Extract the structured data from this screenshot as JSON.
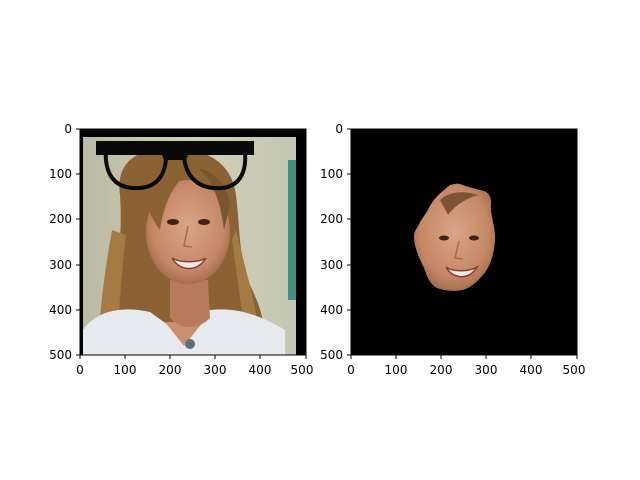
{
  "panels": [
    {
      "id": "left",
      "description_icon": "photo-with-glasses-overlay",
      "x_ticks": [
        "0",
        "100",
        "200",
        "300",
        "400",
        "500"
      ],
      "y_ticks": [
        "0",
        "100",
        "200",
        "300",
        "400",
        "500"
      ],
      "x_range": [
        0,
        500
      ],
      "y_range": [
        0,
        500
      ]
    },
    {
      "id": "right",
      "description_icon": "segmented-face-on-black",
      "x_ticks": [
        "0",
        "100",
        "200",
        "300",
        "400",
        "500"
      ],
      "y_ticks": [
        "0",
        "100",
        "200",
        "300",
        "400",
        "500"
      ],
      "x_range": [
        0,
        500
      ],
      "y_range": [
        0,
        500
      ]
    }
  ],
  "colors": {
    "background": "#ffffff",
    "axis": "#000000",
    "mask_background": "#000000",
    "glasses": "#0a0a0a",
    "skin": "#c98f6e",
    "hair": "#8a6234",
    "shirt": "#e6e9ee",
    "wall": "#c9c7ad"
  }
}
